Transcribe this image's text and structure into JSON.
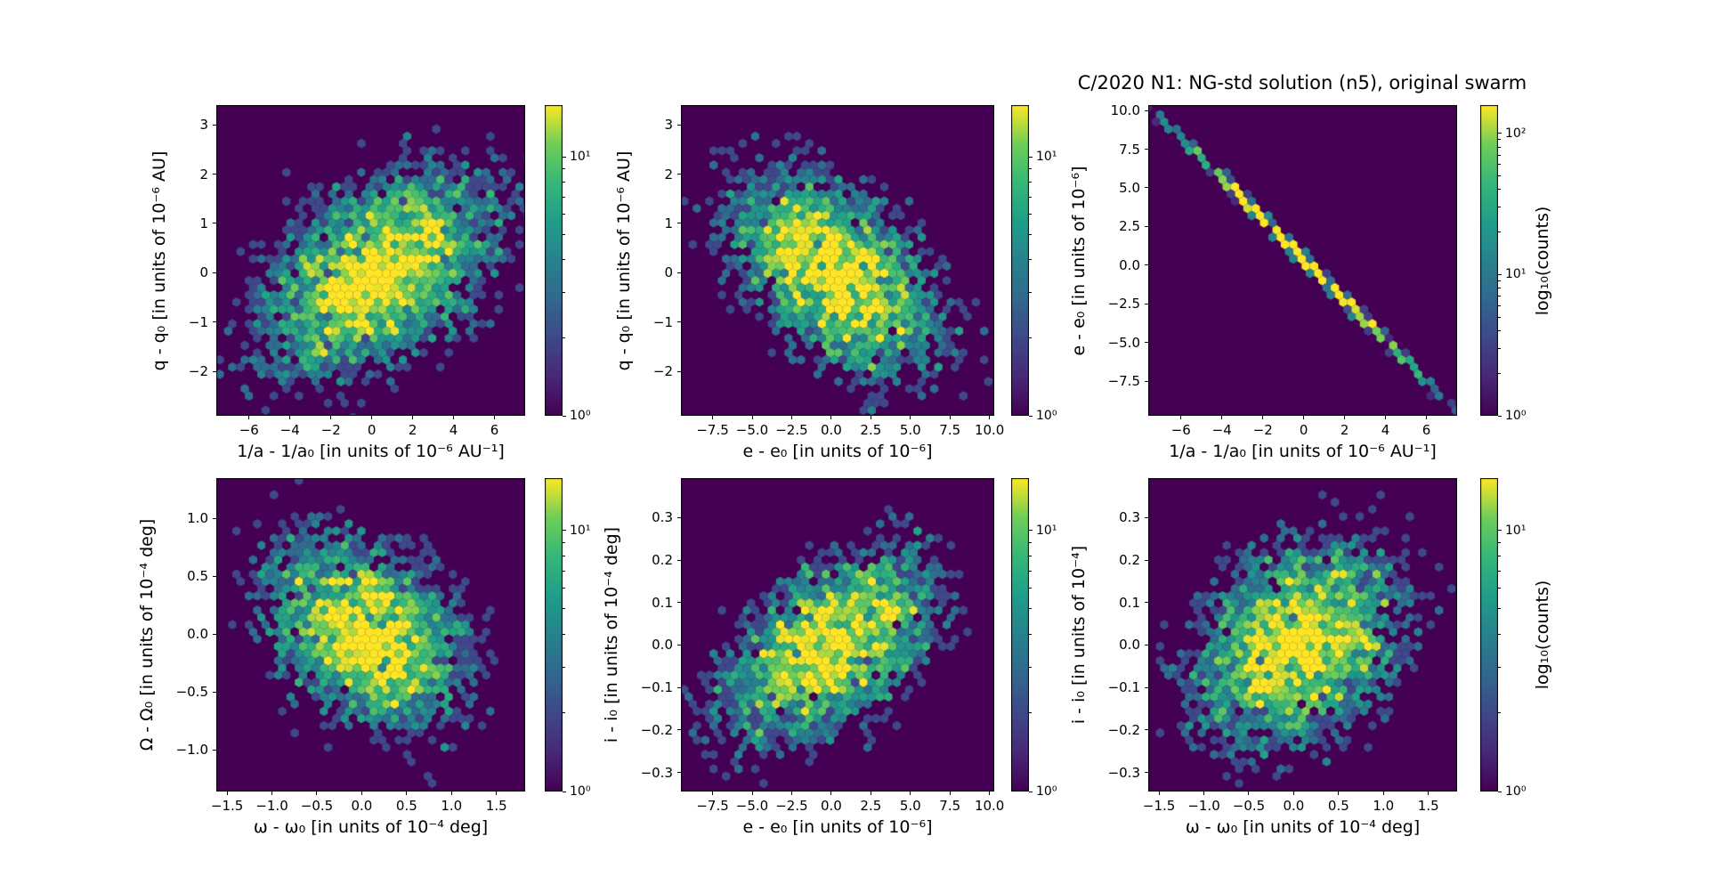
{
  "figure": {
    "title": "C/2020 N1: NG-std solution (n5), original swarm",
    "background": "#ffffff"
  },
  "colors": {
    "plot_background": "#440154",
    "text": "#000000",
    "viridis_stops": [
      "#440154",
      "#482878",
      "#3e4989",
      "#31688e",
      "#26828e",
      "#1f9e89",
      "#35b779",
      "#6ece58",
      "#fde725"
    ]
  },
  "chart_data": {
    "type": "hexbin",
    "title": "C/2020 N1: NG-std solution (n5), original swarm",
    "layout": "2x3 grid of hexbin density panels, each with its own log-scale viridis colorbar",
    "colorbar_label": "log₁₀(counts)",
    "panels": [
      {
        "id": "q-vs-inva",
        "row": 0,
        "col": 0,
        "xlabel": "1/a - 1/a₀ [in units of 10⁻⁶ AU⁻¹]",
        "ylabel": "q - q₀ [in units of 10⁻⁶ AU]",
        "xlim": [
          -7.6,
          7.5
        ],
        "ylim": [
          -2.9,
          3.4
        ],
        "xticks": {
          "values": [
            -6,
            -4,
            -2,
            0,
            2,
            4,
            6
          ],
          "labels": [
            "−6",
            "−4",
            "−2",
            "0",
            "2",
            "4",
            "6"
          ]
        },
        "yticks": {
          "values": [
            3,
            2,
            1,
            0,
            -1,
            -2
          ],
          "labels": [
            "3",
            "2",
            "1",
            "0",
            "−1",
            "−2"
          ]
        },
        "colorbar": {
          "vmax_exp": 1.2,
          "ticks": [
            {
              "exp": 1,
              "label": "10¹"
            },
            {
              "exp": 0,
              "label": "10⁰"
            }
          ],
          "label": null
        },
        "distribution": {
          "kind": "gaussian",
          "center": [
            0.3,
            0.0
          ],
          "sigma": [
            2.9,
            1.05
          ],
          "rho": 0.45,
          "peak_count": 19
        }
      },
      {
        "id": "q-vs-e",
        "row": 0,
        "col": 1,
        "xlabel": "e - e₀ [in units of 10⁻⁶]",
        "ylabel": "q - q₀ [in units of 10⁻⁶ AU]",
        "xlim": [
          -9.5,
          10.3
        ],
        "ylim": [
          -2.9,
          3.4
        ],
        "xticks": {
          "values": [
            -7.5,
            -5.0,
            -2.5,
            0.0,
            2.5,
            5.0,
            7.5,
            10.0
          ],
          "labels": [
            "−7.5",
            "−5.0",
            "−2.5",
            "0.0",
            "2.5",
            "5.0",
            "7.5",
            "10.0"
          ]
        },
        "yticks": {
          "values": [
            3,
            2,
            1,
            0,
            -1,
            -2
          ],
          "labels": [
            "3",
            "2",
            "1",
            "0",
            "−1",
            "−2"
          ]
        },
        "colorbar": {
          "vmax_exp": 1.2,
          "ticks": [
            {
              "exp": 1,
              "label": "10¹"
            },
            {
              "exp": 0,
              "label": "10⁰"
            }
          ],
          "label": null
        },
        "distribution": {
          "kind": "gaussian",
          "center": [
            0.2,
            0.0
          ],
          "sigma": [
            3.4,
            1.05
          ],
          "rho": -0.5,
          "peak_count": 19
        }
      },
      {
        "id": "e-vs-inva",
        "row": 0,
        "col": 2,
        "xlabel": "1/a - 1/a₀ [in units of 10⁻⁶ AU⁻¹]",
        "ylabel": "e - e₀ [in units of 10⁻⁶]",
        "xlim": [
          -7.6,
          7.5
        ],
        "ylim": [
          -9.74,
          10.35
        ],
        "xticks": {
          "values": [
            -6,
            -4,
            -2,
            0,
            2,
            4,
            6
          ],
          "labels": [
            "−6",
            "−4",
            "−2",
            "0",
            "2",
            "4",
            "6"
          ]
        },
        "yticks": {
          "values": [
            10.0,
            7.5,
            5.0,
            2.5,
            0.0,
            -2.5,
            -5.0,
            -7.5
          ],
          "labels": [
            "10.0",
            "7.5",
            "5.0",
            "2.5",
            "0.0",
            "−2.5",
            "−5.0",
            "−7.5"
          ]
        },
        "colorbar": {
          "vmax_exp": 2.2,
          "ticks": [
            {
              "exp": 2,
              "label": "10²"
            },
            {
              "exp": 1,
              "label": "10¹"
            },
            {
              "exp": 0,
              "label": "10⁰"
            }
          ],
          "label": "log₁₀(counts)"
        },
        "distribution": {
          "kind": "line",
          "slope": -1.31,
          "intercept": 0.37,
          "center_x": 0,
          "sigma_along": 2.6,
          "peak_count": 260
        }
      },
      {
        "id": "Omega-vs-omega",
        "row": 1,
        "col": 0,
        "xlabel": "ω - ω₀ [in units of 10⁻⁴ deg]",
        "ylabel": "Ω - Ω₀ [in units of 10⁻⁴ deg]",
        "xlim": [
          -1.62,
          1.82
        ],
        "ylim": [
          -1.36,
          1.35
        ],
        "xticks": {
          "values": [
            -1.5,
            -1.0,
            -0.5,
            0.0,
            0.5,
            1.0,
            1.5
          ],
          "labels": [
            "−1.5",
            "−1.0",
            "−0.5",
            "0.0",
            "0.5",
            "1.0",
            "1.5"
          ]
        },
        "yticks": {
          "values": [
            1.0,
            0.5,
            0.0,
            -0.5,
            -1.0
          ],
          "labels": [
            "1.0",
            "0.5",
            "0.0",
            "−0.5",
            "−1.0"
          ]
        },
        "colorbar": {
          "vmax_exp": 1.2,
          "ticks": [
            {
              "exp": 1,
              "label": "10¹"
            },
            {
              "exp": 0,
              "label": "10⁰"
            }
          ],
          "label": null
        },
        "distribution": {
          "kind": "gaussian",
          "center": [
            0.05,
            0.0
          ],
          "sigma": [
            0.56,
            0.42
          ],
          "rho": -0.32,
          "peak_count": 18
        }
      },
      {
        "id": "i-vs-e",
        "row": 1,
        "col": 1,
        "xlabel": "e - e₀ [in units of 10⁻⁶]",
        "ylabel": "i - i₀ [in units of 10⁻⁴ deg]",
        "xlim": [
          -9.5,
          10.3
        ],
        "ylim": [
          -0.345,
          0.393
        ],
        "xticks": {
          "values": [
            -7.5,
            -5.0,
            -2.5,
            0.0,
            2.5,
            5.0,
            7.5,
            10.0
          ],
          "labels": [
            "−7.5",
            "−5.0",
            "−2.5",
            "0.0",
            "2.5",
            "5.0",
            "7.5",
            "10.0"
          ]
        },
        "yticks": {
          "values": [
            0.3,
            0.2,
            0.1,
            0.0,
            -0.1,
            -0.2,
            -0.3
          ],
          "labels": [
            "0.3",
            "0.2",
            "0.1",
            "0.0",
            "−0.1",
            "−0.2",
            "−0.3"
          ]
        },
        "colorbar": {
          "vmax_exp": 1.2,
          "ticks": [
            {
              "exp": 1,
              "label": "10¹"
            },
            {
              "exp": 0,
              "label": "10⁰"
            }
          ],
          "label": null
        },
        "distribution": {
          "kind": "gaussian",
          "center": [
            0.0,
            0.0
          ],
          "sigma": [
            3.4,
            0.115
          ],
          "rho": 0.5,
          "peak_count": 18
        }
      },
      {
        "id": "i-vs-omega",
        "row": 1,
        "col": 2,
        "xlabel": "ω - ω₀ [in units of 10⁻⁴ deg]",
        "ylabel": "i - i₀ [in units of 10⁻⁴]",
        "xlim": [
          -1.62,
          1.82
        ],
        "ylim": [
          -0.345,
          0.393
        ],
        "xticks": {
          "values": [
            -1.5,
            -1.0,
            -0.5,
            0.0,
            0.5,
            1.0,
            1.5
          ],
          "labels": [
            "−1.5",
            "−1.0",
            "−0.5",
            "0.0",
            "0.5",
            "1.0",
            "1.5"
          ]
        },
        "yticks": {
          "values": [
            0.3,
            0.2,
            0.1,
            0.0,
            -0.1,
            -0.2,
            -0.3
          ],
          "labels": [
            "0.3",
            "0.2",
            "0.1",
            "0.0",
            "−0.1",
            "−0.2",
            "−0.3"
          ]
        },
        "colorbar": {
          "vmax_exp": 1.2,
          "ticks": [
            {
              "exp": 1,
              "label": "10¹"
            },
            {
              "exp": 0,
              "label": "10⁰"
            }
          ],
          "label": "log₁₀(counts)"
        },
        "distribution": {
          "kind": "gaussian",
          "center": [
            0.05,
            0.0
          ],
          "sigma": [
            0.6,
            0.12
          ],
          "rho": 0.28,
          "peak_count": 18
        }
      }
    ]
  }
}
